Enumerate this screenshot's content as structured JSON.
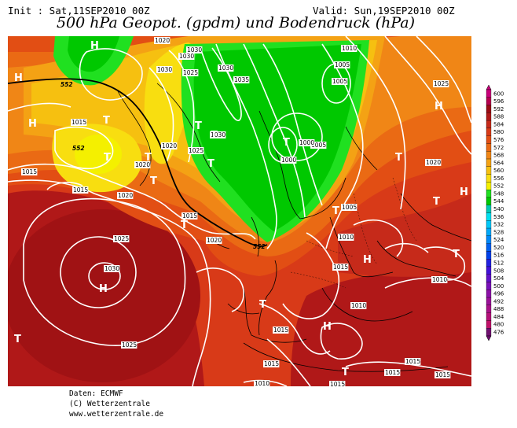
{
  "header": {
    "init_label": "Init : Sat,11SEP2010 00Z",
    "valid_label": "Valid: Sun,19SEP2010 00Z",
    "title": "500 hPa Geopot. (gpdm) und Bodendruck (hPa)"
  },
  "map": {
    "isobar_labels": [
      {
        "text": "1030"
      },
      {
        "text": "1030"
      },
      {
        "text": "1030"
      },
      {
        "text": "1025"
      },
      {
        "text": "1030"
      },
      {
        "text": "1035"
      },
      {
        "text": "1030"
      },
      {
        "text": "1025"
      },
      {
        "text": "1020"
      },
      {
        "text": "1015"
      },
      {
        "text": "1020"
      },
      {
        "text": "1020"
      },
      {
        "text": "1015"
      },
      {
        "text": "1015"
      },
      {
        "text": "1020"
      },
      {
        "text": "1025"
      },
      {
        "text": "1015"
      },
      {
        "text": "1020"
      },
      {
        "text": "1030"
      },
      {
        "text": "1025"
      },
      {
        "text": "1010"
      },
      {
        "text": "1005"
      },
      {
        "text": "1005"
      },
      {
        "text": "1000"
      },
      {
        "text": "1005"
      },
      {
        "text": "1000"
      },
      {
        "text": "1005"
      },
      {
        "text": "1010"
      },
      {
        "text": "1015"
      },
      {
        "text": "1015"
      },
      {
        "text": "1010"
      },
      {
        "text": "1015"
      },
      {
        "text": "1015"
      },
      {
        "text": "1015"
      },
      {
        "text": "1025"
      },
      {
        "text": "1020"
      },
      {
        "text": "1010"
      },
      {
        "text": "1015"
      },
      {
        "text": "1010"
      },
      {
        "text": "1015"
      }
    ],
    "geopotential_labels": [
      {
        "text": "552"
      },
      {
        "text": "552"
      },
      {
        "text": "552"
      }
    ],
    "high_symbols": [
      {
        "text": "H"
      },
      {
        "text": "H"
      },
      {
        "text": "H"
      },
      {
        "text": "H"
      },
      {
        "text": "H"
      },
      {
        "text": "H"
      },
      {
        "text": "H"
      },
      {
        "text": "H"
      }
    ],
    "low_symbols": [
      {
        "text": "T"
      },
      {
        "text": "T"
      },
      {
        "text": "T"
      },
      {
        "text": "T"
      },
      {
        "text": "T"
      },
      {
        "text": "T"
      },
      {
        "text": "T"
      },
      {
        "text": "T"
      },
      {
        "text": "T"
      },
      {
        "text": "T"
      },
      {
        "text": "T"
      },
      {
        "text": "T"
      },
      {
        "text": "T"
      },
      {
        "text": "T"
      },
      {
        "text": "T"
      },
      {
        "text": "T"
      }
    ]
  },
  "legend": {
    "unit": "gpdm",
    "levels": [
      "600",
      "596",
      "592",
      "588",
      "584",
      "580",
      "576",
      "572",
      "568",
      "564",
      "560",
      "556",
      "552",
      "548",
      "544",
      "540",
      "536",
      "532",
      "528",
      "524",
      "520",
      "516",
      "512",
      "508",
      "504",
      "500",
      "496",
      "492",
      "488",
      "484",
      "480",
      "476"
    ],
    "colors": [
      "#c8007a",
      "#b5004e",
      "#9a0a14",
      "#b01818",
      "#c62a1a",
      "#d83a18",
      "#e24e14",
      "#ea6a14",
      "#f08616",
      "#f4a214",
      "#f6c010",
      "#f8de10",
      "#f4f000",
      "#20e020",
      "#00c800",
      "#00c8b4",
      "#00e0f0",
      "#00c8f8",
      "#00a8f8",
      "#0088f8",
      "#0060f0",
      "#0040e8",
      "#2020e0",
      "#4010d8",
      "#6010c8",
      "#7810b8",
      "#8c10a8",
      "#9a1098",
      "#a81088",
      "#b41078",
      "#c01068",
      "#701070"
    ]
  },
  "credits": {
    "line1": "Daten: ECMWF",
    "line2": "(C) Wetterzentrale",
    "line3": "www.wetterzentrale.de"
  }
}
